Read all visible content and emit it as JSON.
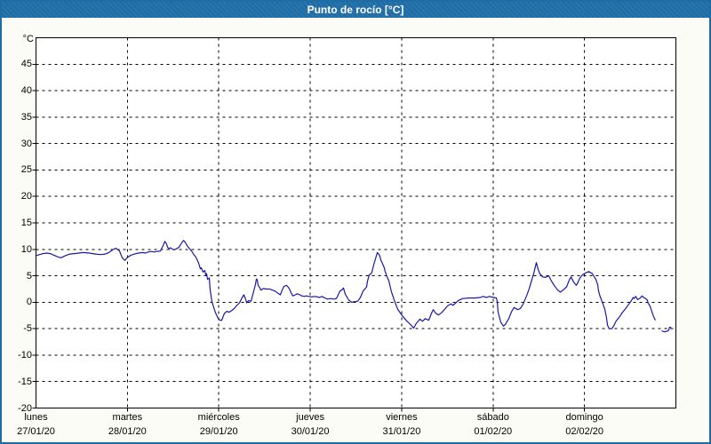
{
  "window": {
    "title": "Punto de rocío [°C]"
  },
  "colors": {
    "frame": "#1e6ca5",
    "titlebar_text": "#ffffff",
    "page_bg": "#fcfcf6",
    "plot_bg": "#ffffff",
    "grid": "#000000",
    "axis_text": "#000000",
    "line": "#1a18a8"
  },
  "chart_data": {
    "type": "line",
    "title": "Punto de rocío [°C]",
    "ylabel": "°C",
    "ylim": [
      -20,
      50
    ],
    "yticks": [
      -20,
      -15,
      -10,
      -5,
      0,
      5,
      10,
      15,
      20,
      25,
      30,
      35,
      40,
      45
    ],
    "xlim_days": [
      0,
      7
    ],
    "grid": "dashed",
    "legend": "none",
    "days": [
      {
        "name": "lunes",
        "date": "27/01/20"
      },
      {
        "name": "martes",
        "date": "28/01/20"
      },
      {
        "name": "miércoles",
        "date": "29/01/20"
      },
      {
        "name": "jueves",
        "date": "30/01/20"
      },
      {
        "name": "viernes",
        "date": "31/01/20"
      },
      {
        "name": "sábado",
        "date": "01/02/20"
      },
      {
        "name": "domingo",
        "date": "02/02/20"
      }
    ],
    "series": [
      {
        "name": "Punto de rocío",
        "unit": "°C",
        "color": "#1a18a8",
        "segments": [
          [
            [
              0.0,
              8.8
            ],
            [
              0.039,
              9.0
            ],
            [
              0.078,
              9.2
            ],
            [
              0.117,
              9.3
            ],
            [
              0.156,
              9.2
            ],
            [
              0.194,
              8.9
            ],
            [
              0.233,
              8.6
            ],
            [
              0.272,
              8.4
            ],
            [
              0.321,
              8.8
            ],
            [
              0.369,
              9.1
            ],
            [
              0.418,
              9.2
            ],
            [
              0.467,
              9.3
            ],
            [
              0.515,
              9.4
            ],
            [
              0.583,
              9.3
            ],
            [
              0.651,
              9.1
            ],
            [
              0.71,
              9.0
            ],
            [
              0.758,
              9.1
            ],
            [
              0.797,
              9.4
            ],
            [
              0.846,
              10.0
            ],
            [
              0.875,
              10.2
            ],
            [
              0.914,
              9.7
            ],
            [
              0.943,
              8.4
            ],
            [
              0.972,
              7.9
            ],
            [
              1.001,
              8.5
            ],
            [
              1.04,
              8.9
            ],
            [
              1.079,
              9.1
            ],
            [
              1.118,
              9.3
            ],
            [
              1.167,
              9.4
            ],
            [
              1.196,
              9.3
            ],
            [
              1.225,
              9.5
            ],
            [
              1.264,
              9.6
            ],
            [
              1.293,
              9.5
            ],
            [
              1.322,
              9.6
            ],
            [
              1.361,
              9.7
            ],
            [
              1.39,
              10.7
            ],
            [
              1.41,
              11.5
            ],
            [
              1.429,
              11.0
            ],
            [
              1.439,
              10.4
            ],
            [
              1.458,
              10.1
            ],
            [
              1.468,
              10.3
            ],
            [
              1.507,
              9.9
            ],
            [
              1.536,
              10.1
            ],
            [
              1.565,
              10.4
            ],
            [
              1.585,
              11.0
            ],
            [
              1.614,
              11.7
            ],
            [
              1.633,
              11.3
            ],
            [
              1.653,
              10.7
            ],
            [
              1.682,
              10.1
            ],
            [
              1.701,
              9.7
            ],
            [
              1.731,
              8.9
            ],
            [
              1.75,
              8.5
            ],
            [
              1.779,
              7.4
            ],
            [
              1.799,
              6.3
            ],
            [
              1.808,
              6.5
            ],
            [
              1.828,
              5.7
            ],
            [
              1.847,
              6.0
            ],
            [
              1.857,
              5.1
            ],
            [
              1.867,
              5.4
            ],
            [
              1.876,
              4.3
            ],
            [
              1.896,
              4.6
            ],
            [
              1.905,
              2.4
            ],
            [
              1.925,
              0.1
            ],
            [
              1.944,
              -1.0
            ],
            [
              1.964,
              -2.0
            ],
            [
              1.993,
              -3.1
            ],
            [
              2.013,
              -3.4
            ],
            [
              2.032,
              -3.4
            ],
            [
              2.061,
              -2.1
            ],
            [
              2.09,
              -1.7
            ],
            [
              2.11,
              -1.9
            ],
            [
              2.139,
              -1.6
            ],
            [
              2.168,
              -1.2
            ],
            [
              2.197,
              -0.6
            ],
            [
              2.226,
              -0.1
            ],
            [
              2.256,
              0.9
            ],
            [
              2.275,
              1.4
            ],
            [
              2.294,
              0.5
            ],
            [
              2.304,
              -0.1
            ],
            [
              2.324,
              0.3
            ],
            [
              2.353,
              0.2
            ],
            [
              2.362,
              0.8
            ],
            [
              2.382,
              2.1
            ],
            [
              2.401,
              3.4
            ],
            [
              2.411,
              4.4
            ],
            [
              2.421,
              4.2
            ],
            [
              2.43,
              3.2
            ],
            [
              2.45,
              2.7
            ],
            [
              2.459,
              2.3
            ],
            [
              2.489,
              2.6
            ],
            [
              2.518,
              2.5
            ],
            [
              2.557,
              2.5
            ],
            [
              2.586,
              2.3
            ],
            [
              2.615,
              2.1
            ],
            [
              2.654,
              1.6
            ],
            [
              2.673,
              1.4
            ],
            [
              2.693,
              2.3
            ],
            [
              2.712,
              3.0
            ],
            [
              2.741,
              3.2
            ],
            [
              2.751,
              3.0
            ],
            [
              2.77,
              2.6
            ],
            [
              2.79,
              1.8
            ],
            [
              2.809,
              1.2
            ],
            [
              2.838,
              1.4
            ],
            [
              2.858,
              1.6
            ],
            [
              2.887,
              1.4
            ],
            [
              2.906,
              1.2
            ],
            [
              2.936,
              1.1
            ],
            [
              2.955,
              1.2
            ],
            [
              2.984,
              1.1
            ],
            [
              3.014,
              1.0
            ],
            [
              3.043,
              1.1
            ],
            [
              3.082,
              1.0
            ],
            [
              3.101,
              0.9
            ],
            [
              3.13,
              1.1
            ],
            [
              3.16,
              0.8
            ],
            [
              3.189,
              0.6
            ],
            [
              3.228,
              0.7
            ],
            [
              3.257,
              0.6
            ],
            [
              3.286,
              0.7
            ],
            [
              3.325,
              2.1
            ],
            [
              3.344,
              2.3
            ],
            [
              3.364,
              2.7
            ],
            [
              3.383,
              1.5
            ],
            [
              3.422,
              0.4
            ],
            [
              3.451,
              0.0
            ],
            [
              3.48,
              0.1
            ],
            [
              3.519,
              0.2
            ],
            [
              3.549,
              0.9
            ],
            [
              3.578,
              2.1
            ],
            [
              3.617,
              2.9
            ],
            [
              3.626,
              4.0
            ],
            [
              3.646,
              5.2
            ],
            [
              3.665,
              5.4
            ],
            [
              3.675,
              5.7
            ],
            [
              3.694,
              7.1
            ],
            [
              3.714,
              8.2
            ],
            [
              3.733,
              9.4
            ],
            [
              3.753,
              9.0
            ],
            [
              3.762,
              8.7
            ],
            [
              3.772,
              8.0
            ],
            [
              3.791,
              7.3
            ],
            [
              3.81,
              6.5
            ],
            [
              3.82,
              5.8
            ],
            [
              3.84,
              4.8
            ],
            [
              3.859,
              4.1
            ],
            [
              3.868,
              3.4
            ],
            [
              3.888,
              2.0
            ],
            [
              3.917,
              0.5
            ],
            [
              3.956,
              -1.3
            ],
            [
              4.005,
              -2.5
            ],
            [
              4.053,
              -3.5
            ],
            [
              4.102,
              -4.3
            ],
            [
              4.131,
              -4.9
            ],
            [
              4.16,
              -4.0
            ],
            [
              4.199,
              -3.2
            ],
            [
              4.228,
              -3.6
            ],
            [
              4.257,
              -3.1
            ],
            [
              4.296,
              -3.4
            ],
            [
              4.326,
              -2.1
            ],
            [
              4.345,
              -1.4
            ],
            [
              4.374,
              -2.1
            ],
            [
              4.403,
              -2.4
            ],
            [
              4.442,
              -1.9
            ],
            [
              4.472,
              -1.3
            ],
            [
              4.501,
              -0.7
            ],
            [
              4.54,
              -0.3
            ],
            [
              4.56,
              -0.6
            ],
            [
              4.589,
              -0.2
            ],
            [
              4.618,
              0.3
            ],
            [
              4.666,
              0.7
            ],
            [
              4.734,
              0.8
            ],
            [
              4.793,
              0.8
            ],
            [
              4.861,
              0.9
            ],
            [
              4.89,
              1.1
            ],
            [
              4.929,
              0.9
            ],
            [
              4.958,
              1.1
            ],
            [
              5.007,
              0.9
            ],
            [
              5.036,
              0.8
            ],
            [
              5.046,
              0.1
            ],
            [
              5.055,
              -1.8
            ],
            [
              5.085,
              -3.8
            ],
            [
              5.114,
              -4.5
            ],
            [
              5.133,
              -4.2
            ],
            [
              5.172,
              -3.1
            ],
            [
              5.201,
              -1.8
            ],
            [
              5.23,
              -1.0
            ],
            [
              5.269,
              -1.4
            ],
            [
              5.298,
              -1.2
            ],
            [
              5.328,
              -0.4
            ],
            [
              5.367,
              1.2
            ],
            [
              5.396,
              2.6
            ],
            [
              5.425,
              4.3
            ],
            [
              5.444,
              5.4
            ],
            [
              5.464,
              6.8
            ],
            [
              5.474,
              7.5
            ],
            [
              5.493,
              6.2
            ],
            [
              5.512,
              5.4
            ],
            [
              5.542,
              4.8
            ],
            [
              5.571,
              4.7
            ],
            [
              5.61,
              5.0
            ],
            [
              5.639,
              4.0
            ],
            [
              5.668,
              3.2
            ],
            [
              5.707,
              2.3
            ],
            [
              5.736,
              1.9
            ],
            [
              5.765,
              2.3
            ],
            [
              5.804,
              2.9
            ],
            [
              5.833,
              4.2
            ],
            [
              5.853,
              4.8
            ],
            [
              5.882,
              3.8
            ],
            [
              5.911,
              3.2
            ],
            [
              5.93,
              3.8
            ],
            [
              5.95,
              4.6
            ],
            [
              5.979,
              5.2
            ],
            [
              6.008,
              5.5
            ],
            [
              6.047,
              5.8
            ],
            [
              6.086,
              5.4
            ],
            [
              6.125,
              4.3
            ],
            [
              6.144,
              3.3
            ],
            [
              6.154,
              2.1
            ],
            [
              6.173,
              1.0
            ],
            [
              6.193,
              0.1
            ],
            [
              6.222,
              -1.3
            ],
            [
              6.241,
              -2.9
            ],
            [
              6.251,
              -4.3
            ],
            [
              6.27,
              -5.0
            ],
            [
              6.299,
              -5.0
            ],
            [
              6.319,
              -4.5
            ],
            [
              6.348,
              -3.5
            ],
            [
              6.387,
              -2.7
            ],
            [
              6.416,
              -1.9
            ],
            [
              6.445,
              -1.3
            ],
            [
              6.484,
              -0.4
            ],
            [
              6.513,
              0.3
            ],
            [
              6.532,
              0.9
            ],
            [
              6.542,
              0.7
            ],
            [
              6.561,
              1.1
            ],
            [
              6.581,
              0.5
            ],
            [
              6.61,
              0.8
            ],
            [
              6.629,
              1.2
            ],
            [
              6.648,
              0.9
            ],
            [
              6.668,
              0.7
            ],
            [
              6.688,
              0.4
            ],
            [
              6.697,
              -0.2
            ],
            [
              6.717,
              -0.7
            ],
            [
              6.736,
              -1.7
            ],
            [
              6.756,
              -2.7
            ],
            [
              6.775,
              -3.4
            ]
          ],
          [
            [
              6.843,
              -5.4
            ],
            [
              6.873,
              -5.6
            ],
            [
              6.902,
              -5.5
            ],
            [
              6.921,
              -5.3
            ],
            [
              6.931,
              -4.7
            ],
            [
              6.95,
              -4.8
            ]
          ]
        ]
      }
    ]
  }
}
